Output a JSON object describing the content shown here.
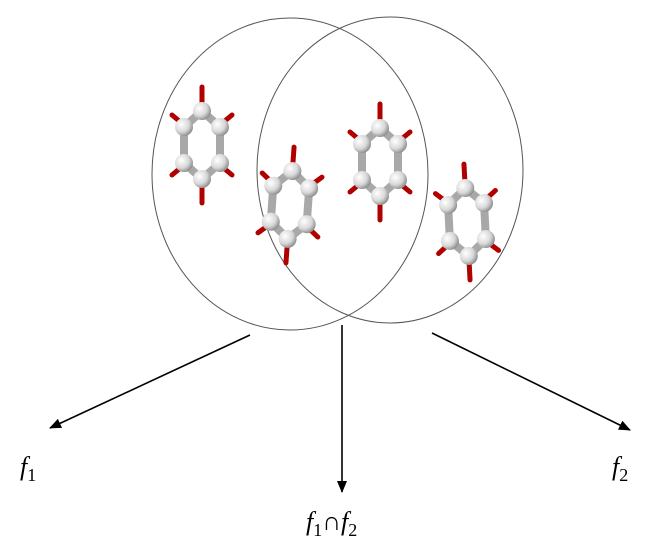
{
  "labels": {
    "left": {
      "symbol": "f",
      "index": "1"
    },
    "right": {
      "symbol": "f",
      "index": "2"
    },
    "intersection": {
      "left_symbol": "f",
      "left_index": "1",
      "operator": "∩",
      "right_symbol": "f",
      "right_index": "2"
    }
  }
}
